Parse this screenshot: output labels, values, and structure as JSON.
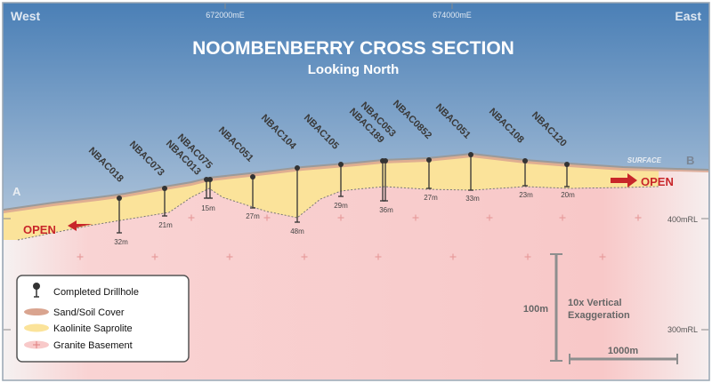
{
  "header": {
    "title": "NOOMBENBERRY CROSS SECTION",
    "subtitle": "Looking North",
    "west_label": "West",
    "east_label": "East"
  },
  "grid": {
    "easting_ticks": [
      {
        "label": "672000mE"
      },
      {
        "label": "674000mE"
      }
    ],
    "rl_ticks": [
      {
        "label": "400mRL"
      },
      {
        "label": "300mRL"
      }
    ]
  },
  "section_labels": {
    "a": "A",
    "b": "B",
    "surface": "SURFACE",
    "open_left": "OPEN",
    "open_right": "OPEN"
  },
  "drillholes": [
    {
      "name": "NBAC018",
      "depth": "32m"
    },
    {
      "name": "NBAC073",
      "depth": "21m"
    },
    {
      "name": "NBAC013",
      "depth": ""
    },
    {
      "name": "NBAC075",
      "depth": "15m"
    },
    {
      "name": "NBAC051",
      "depth": "27m"
    },
    {
      "name": "NBAC104",
      "depth": "48m"
    },
    {
      "name": "NBAC105",
      "depth": "29m"
    },
    {
      "name": "NBAC189",
      "depth": ""
    },
    {
      "name": "NBAC053",
      "depth": "36m"
    },
    {
      "name": "NBAC0852",
      "depth": "27m"
    },
    {
      "name": "NBAC051",
      "depth": "33m"
    },
    {
      "name": "NBAC108",
      "depth": "23m"
    },
    {
      "name": "NBAC120",
      "depth": "20m"
    }
  ],
  "scale": {
    "vertical_label": "100m",
    "exaggeration_line1": "10x Vertical",
    "exaggeration_line2": "Exaggeration",
    "horizontal_label": "1000m"
  },
  "legend": {
    "items": [
      {
        "label": "Completed Drillhole",
        "symbol": "drillhole-icon"
      },
      {
        "label": "Sand/Soil Cover",
        "symbol": "sand-soil-swatch",
        "color": "#d9a48f"
      },
      {
        "label": "Kaolinite Saprolite",
        "symbol": "kaolinite-swatch",
        "color": "#fbe39a"
      },
      {
        "label": "Granite Basement",
        "symbol": "granite-swatch",
        "color": "#f8c9c9"
      }
    ]
  },
  "colors": {
    "sky_top": "#4d81b8",
    "sky_bottom": "#e4ebf3",
    "granite": "#f8cccc",
    "kaolinite": "#fbe39a",
    "soil": "#d9a48f",
    "open_arrow": "#c8262a",
    "grid_text": "#6e6e6e"
  }
}
